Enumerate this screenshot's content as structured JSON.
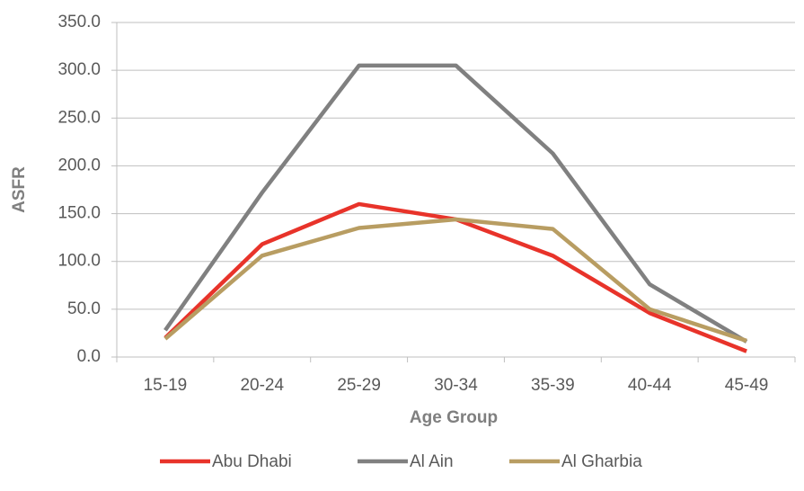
{
  "chart_data": {
    "type": "line",
    "x_label": "Age Group",
    "y_label": "ASFR",
    "categories": [
      "15-19",
      "20-24",
      "25-29",
      "30-34",
      "35-39",
      "40-44",
      "45-49"
    ],
    "series": [
      {
        "name": "Abu Dhabi",
        "color": "#e8332a",
        "values": [
          20,
          118,
          160,
          144,
          106,
          46,
          6
        ]
      },
      {
        "name": "Al Ain",
        "color": "#808080",
        "values": [
          28,
          172,
          305,
          305,
          213,
          76,
          16
        ]
      },
      {
        "name": "Al Gharbia",
        "color": "#b89d62",
        "values": [
          19,
          106,
          135,
          144,
          134,
          50,
          17
        ]
      }
    ],
    "ylim": [
      0,
      350
    ],
    "yticks": [
      {
        "value": 0,
        "label": "0.0"
      },
      {
        "value": 50,
        "label": "50.0"
      },
      {
        "value": 100,
        "label": "100.0"
      },
      {
        "value": 150,
        "label": "150.0"
      },
      {
        "value": 200,
        "label": "200.0"
      },
      {
        "value": 250,
        "label": "250.0"
      },
      {
        "value": 300,
        "label": "300.0"
      },
      {
        "value": 350,
        "label": "350.0"
      }
    ],
    "grid": true,
    "legend": "bottom"
  }
}
